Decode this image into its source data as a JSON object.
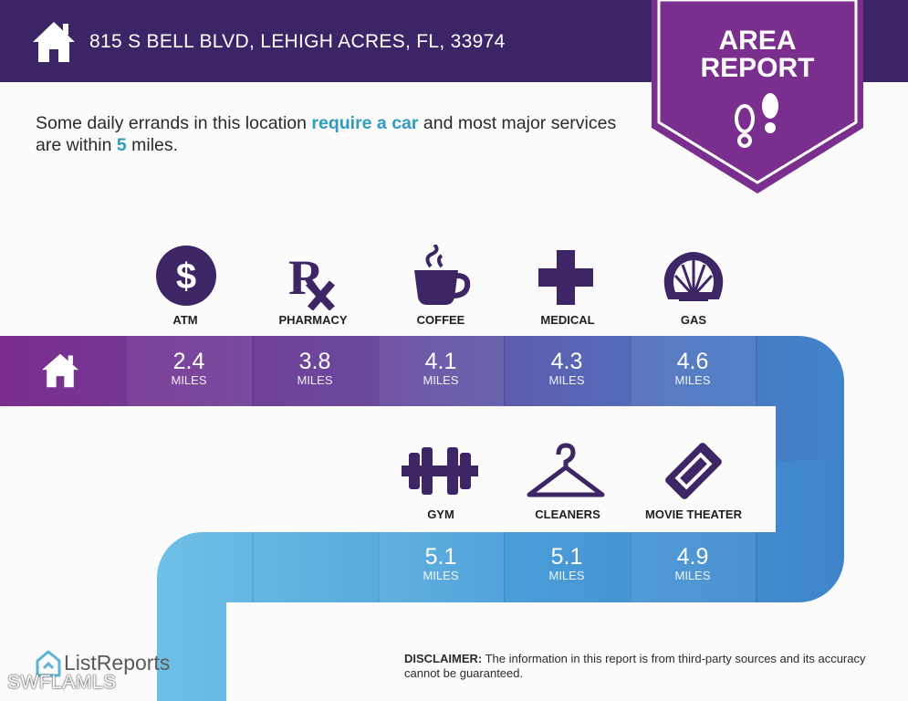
{
  "header": {
    "address": "815 S BELL BLVD, LEHIGH ACRES, FL, 33974"
  },
  "badge": {
    "line1": "AREA",
    "line2": "REPORT"
  },
  "intro": {
    "part1": "Some daily errands in this location ",
    "highlight1": "require a car",
    "part2": " and most major services are within ",
    "highlight2": "5",
    "part3": " miles."
  },
  "colors": {
    "header": "#3b2566",
    "purple": "#7b2d8e",
    "blue": "#3f8ed0",
    "light_blue": "#6fc0e6",
    "accent_text": "#2f9bbf"
  },
  "row1": [
    {
      "label": "ATM",
      "icon": "dollar-icon",
      "distance": "2.4",
      "unit": "MILES"
    },
    {
      "label": "PHARMACY",
      "icon": "rx-icon",
      "distance": "3.8",
      "unit": "MILES"
    },
    {
      "label": "COFFEE",
      "icon": "coffee-icon",
      "distance": "4.1",
      "unit": "MILES"
    },
    {
      "label": "MEDICAL",
      "icon": "medical-cross-icon",
      "distance": "4.3",
      "unit": "MILES"
    },
    {
      "label": "GAS",
      "icon": "shell-icon",
      "distance": "4.6",
      "unit": "MILES"
    }
  ],
  "row2": [
    {
      "label": "GYM",
      "icon": "dumbbell-icon",
      "distance": "5.1",
      "unit": "MILES"
    },
    {
      "label": "CLEANERS",
      "icon": "hanger-icon",
      "distance": "5.1",
      "unit": "MILES"
    },
    {
      "label": "MOVIE THEATER",
      "icon": "ticket-icon",
      "distance": "4.9",
      "unit": "MILES"
    }
  ],
  "footer": {
    "logo_text": "ListReports",
    "watermark": "SWFLAMLS",
    "disclaimer_label": "DISCLAIMER:",
    "disclaimer_text": " The information in this report is from third-party sources and its accuracy cannot be guaranteed."
  }
}
